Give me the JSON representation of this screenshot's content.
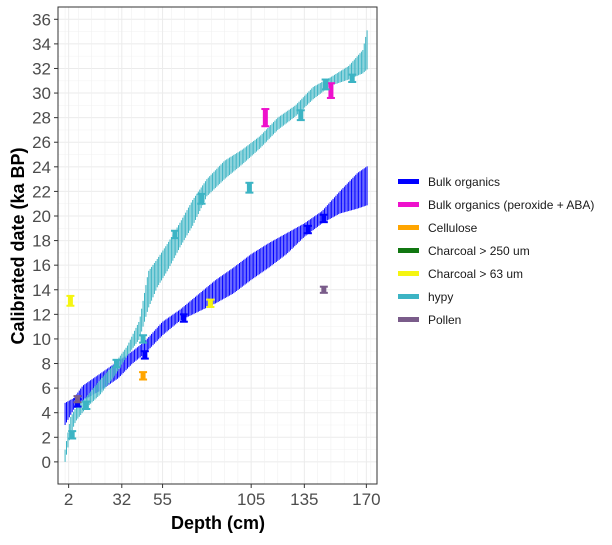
{
  "chart_data": {
    "type": "line",
    "title": "",
    "xlabel": "Depth (cm)",
    "ylabel": "Calibrated date (ka BP)",
    "xlim": [
      -4,
      176
    ],
    "ylim": [
      -1.8,
      37.0
    ],
    "x_ticks": [
      2,
      32,
      55,
      105,
      135,
      170
    ],
    "y_ticks": [
      0,
      2,
      4,
      6,
      8,
      10,
      12,
      14,
      16,
      18,
      20,
      22,
      24,
      26,
      28,
      30,
      32,
      34,
      36
    ],
    "grid": true,
    "legend_position": "right",
    "series": [
      {
        "name": "Bulk organics",
        "color": "#0000ff",
        "kind": "age-depth envelope",
        "x": [
          0,
          5,
          10,
          20,
          30,
          38,
          45,
          55,
          65,
          75,
          85,
          95,
          105,
          115,
          125,
          135,
          145,
          155,
          165,
          171
        ],
        "lower": [
          3.0,
          4.3,
          5.0,
          5.8,
          6.8,
          8.0,
          8.8,
          10.3,
          11.5,
          12.2,
          12.9,
          13.7,
          14.8,
          15.8,
          16.9,
          18.3,
          19.4,
          20.2,
          20.6,
          20.9
        ],
        "upper": [
          4.8,
          5.2,
          6.2,
          7.2,
          8.2,
          9.0,
          9.8,
          11.4,
          12.4,
          13.6,
          14.8,
          15.8,
          16.9,
          17.8,
          18.6,
          19.4,
          20.4,
          22.0,
          23.5,
          24.1
        ]
      },
      {
        "name": "hypy",
        "color": "#3cb4c4",
        "kind": "age-depth envelope",
        "x": [
          0,
          3,
          6,
          12,
          20,
          28,
          35,
          42,
          47,
          52,
          58,
          65,
          72,
          80,
          90,
          100,
          110,
          120,
          130,
          140,
          150,
          160,
          168,
          171
        ],
        "lower": [
          0.0,
          2.2,
          3.3,
          4.4,
          5.5,
          7.0,
          8.6,
          10.0,
          12.5,
          14.2,
          15.6,
          17.5,
          19.2,
          21.6,
          23.0,
          24.2,
          25.5,
          27.0,
          28.1,
          29.5,
          30.6,
          31.1,
          31.6,
          32.0
        ],
        "upper": [
          1.0,
          3.6,
          4.4,
          5.3,
          6.7,
          8.0,
          9.4,
          11.5,
          15.5,
          16.5,
          17.8,
          19.5,
          21.3,
          23.0,
          24.5,
          25.4,
          26.5,
          28.0,
          29.0,
          30.5,
          31.3,
          32.2,
          33.5,
          35.5
        ]
      }
    ],
    "dated_samples": [
      {
        "type": "Bulk organics",
        "color": "#0000ff",
        "x": 7,
        "y": 4.8,
        "err": 0.3
      },
      {
        "type": "Bulk organics",
        "color": "#0000ff",
        "x": 45,
        "y": 8.7,
        "err": 0.3
      },
      {
        "type": "Bulk organics",
        "color": "#0000ff",
        "x": 67,
        "y": 11.7,
        "err": 0.3
      },
      {
        "type": "Bulk organics",
        "color": "#0000ff",
        "x": 137,
        "y": 18.9,
        "err": 0.3
      },
      {
        "type": "Bulk organics",
        "color": "#0000ff",
        "x": 146,
        "y": 19.8,
        "err": 0.3
      },
      {
        "type": "Bulk organics (peroxide + ABA)",
        "color": "#ee11cc",
        "x": 113,
        "y": 28.0,
        "err": 0.7
      },
      {
        "type": "Bulk organics (peroxide + ABA)",
        "color": "#ee11cc",
        "x": 150,
        "y": 30.2,
        "err": 0.6
      },
      {
        "type": "Cellulose",
        "color": "#ffa500",
        "x": 44,
        "y": 7.0,
        "err": 0.3
      },
      {
        "type": "Charcoal > 63 um",
        "color": "#f5f511",
        "x": 3,
        "y": 13.1,
        "err": 0.4
      },
      {
        "type": "Charcoal > 63 um",
        "color": "#f5f511",
        "x": 82,
        "y": 12.9,
        "err": 0.3
      },
      {
        "type": "hypy",
        "color": "#3cb4c4",
        "x": 4,
        "y": 2.2,
        "err": 0.3
      },
      {
        "type": "hypy",
        "color": "#3cb4c4",
        "x": 12,
        "y": 4.6,
        "err": 0.3
      },
      {
        "type": "hypy",
        "color": "#3cb4c4",
        "x": 29,
        "y": 8.0,
        "err": 0.3
      },
      {
        "type": "hypy",
        "color": "#3cb4c4",
        "x": 44,
        "y": 10.0,
        "err": 0.3
      },
      {
        "type": "hypy",
        "color": "#3cb4c4",
        "x": 62,
        "y": 18.5,
        "err": 0.3
      },
      {
        "type": "hypy",
        "color": "#3cb4c4",
        "x": 77,
        "y": 21.4,
        "err": 0.4
      },
      {
        "type": "hypy",
        "color": "#3cb4c4",
        "x": 104,
        "y": 22.3,
        "err": 0.4
      },
      {
        "type": "hypy",
        "color": "#3cb4c4",
        "x": 133,
        "y": 28.2,
        "err": 0.4
      },
      {
        "type": "hypy",
        "color": "#3cb4c4",
        "x": 147,
        "y": 30.7,
        "err": 0.4
      },
      {
        "type": "hypy",
        "color": "#3cb4c4",
        "x": 162,
        "y": 31.2,
        "err": 0.3
      },
      {
        "type": "Pollen",
        "color": "#7a5c8a",
        "x": 7,
        "y": 5.1,
        "err": 0.25
      },
      {
        "type": "Pollen",
        "color": "#7a5c8a",
        "x": 146,
        "y": 14.0,
        "err": 0.25
      }
    ]
  },
  "legend": {
    "items": [
      {
        "label": "Bulk organics",
        "color": "#0000ff"
      },
      {
        "label": "Bulk organics (peroxide + ABA)",
        "color": "#ee11cc"
      },
      {
        "label": "Cellulose",
        "color": "#ffa500"
      },
      {
        "label": "Charcoal > 250 um",
        "color": "#117711"
      },
      {
        "label": "Charcoal > 63 um",
        "color": "#f5f511"
      },
      {
        "label": "hypy",
        "color": "#3cb4c4"
      },
      {
        "label": "Pollen",
        "color": "#7a5c8a"
      }
    ]
  }
}
